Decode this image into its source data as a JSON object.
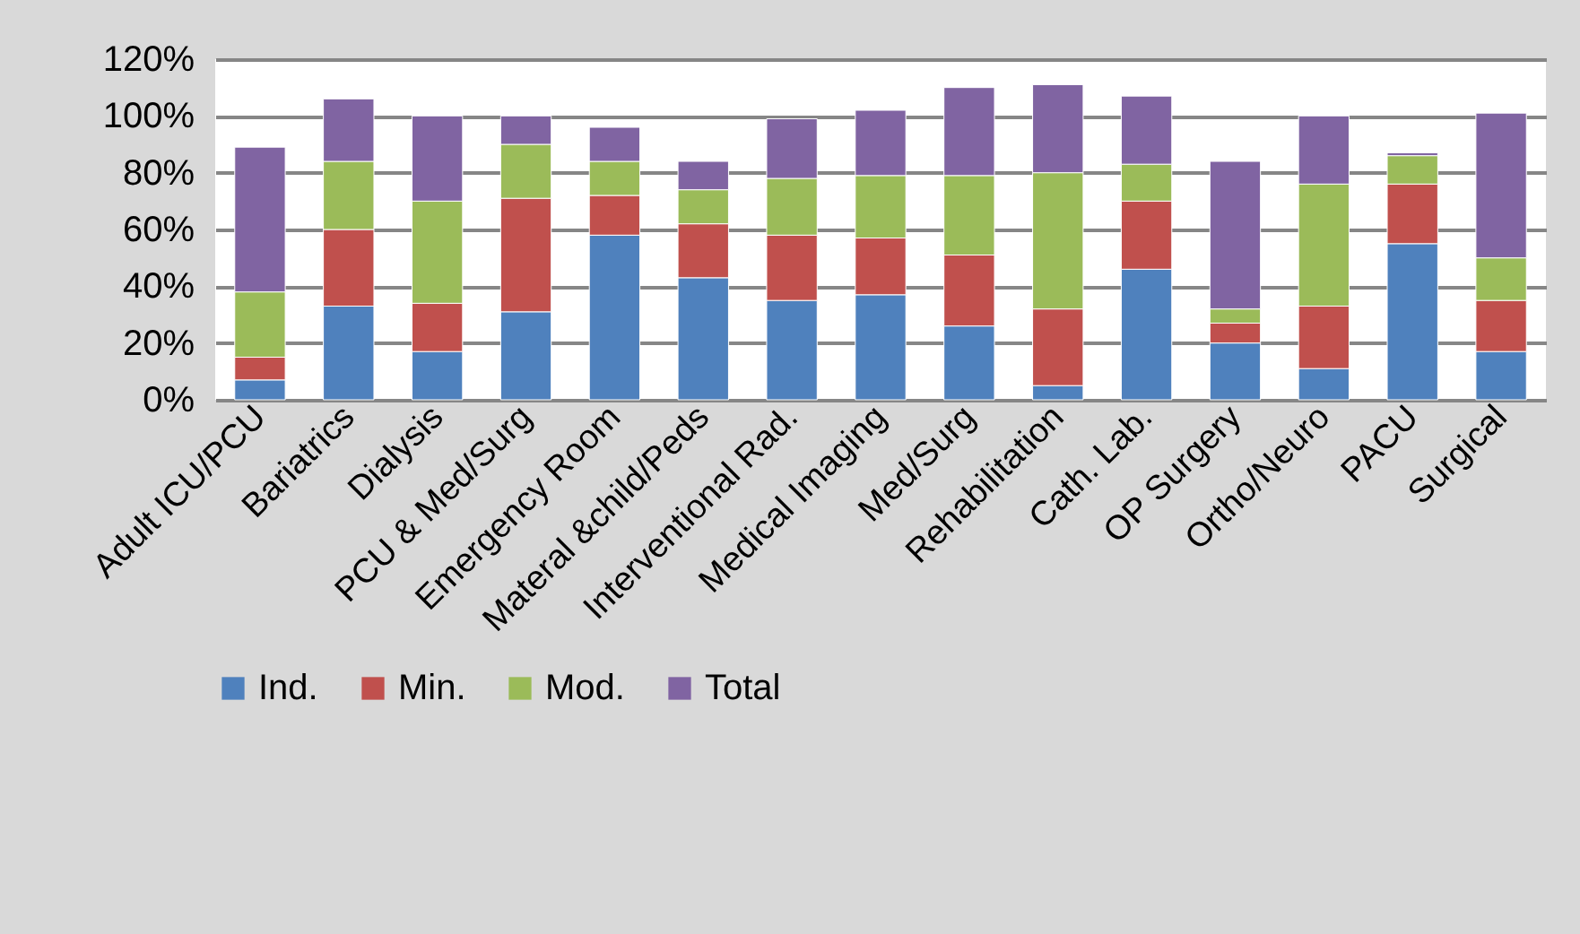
{
  "chart_data": {
    "type": "bar",
    "stacked": true,
    "categories": [
      "Adult ICU/PCU",
      "Bariatrics",
      "Dialysis",
      "PCU & Med/Surg",
      "Emergency Room",
      "Materal &child/Peds",
      "Interventional Rad.",
      "Medical Imaging",
      "Med/Surg",
      "Rehabilitation",
      "Cath. Lab.",
      "OP Surgery",
      "Ortho/Neuro",
      "PACU",
      "Surgical"
    ],
    "series": [
      {
        "name": "Ind.",
        "color": "#4f81bd",
        "values": [
          7,
          33,
          17,
          31,
          58,
          43,
          35,
          37,
          26,
          5,
          46,
          20,
          11,
          55,
          17
        ]
      },
      {
        "name": "Min.",
        "color": "#c0504d",
        "values": [
          8,
          27,
          17,
          40,
          14,
          19,
          23,
          20,
          25,
          27,
          24,
          7,
          22,
          21,
          18
        ]
      },
      {
        "name": "Mod.",
        "color": "#9bbb59",
        "values": [
          23,
          24,
          36,
          19,
          12,
          12,
          20,
          22,
          28,
          48,
          13,
          5,
          43,
          10,
          15
        ]
      },
      {
        "name": "Total",
        "color": "#8064a2",
        "values": [
          51,
          22,
          30,
          10,
          12,
          10,
          21,
          23,
          31,
          31,
          24,
          52,
          24,
          1,
          51
        ]
      }
    ],
    "ylim": [
      0,
      120
    ],
    "yticks": [
      {
        "value": 0,
        "label": "0%"
      },
      {
        "value": 20,
        "label": "20%"
      },
      {
        "value": 40,
        "label": "40%"
      },
      {
        "value": 60,
        "label": "60%"
      },
      {
        "value": 80,
        "label": "80%"
      },
      {
        "value": 100,
        "label": "100%"
      },
      {
        "value": 120,
        "label": "120%"
      }
    ],
    "grid": "y",
    "legend": "bottom"
  }
}
